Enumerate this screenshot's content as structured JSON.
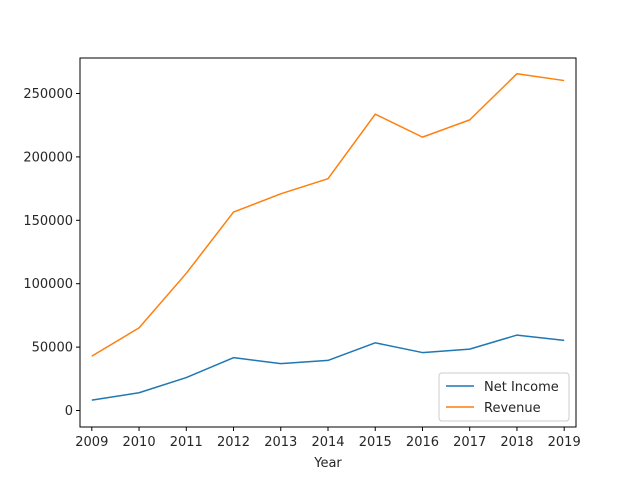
{
  "chart_data": {
    "type": "line",
    "title": "",
    "xlabel": "Year",
    "ylabel": "",
    "x": [
      2009,
      2010,
      2011,
      2012,
      2013,
      2014,
      2015,
      2016,
      2017,
      2018,
      2019
    ],
    "xlim": [
      2008.75,
      2019.25
    ],
    "ylim": [
      -13000,
      278000
    ],
    "yticks": [
      0,
      50000,
      100000,
      150000,
      200000,
      250000
    ],
    "ytick_labels": [
      "0",
      "50000",
      "100000",
      "150000",
      "200000",
      "250000"
    ],
    "xtick_labels": [
      "2009",
      "2010",
      "2011",
      "2012",
      "2013",
      "2014",
      "2015",
      "2016",
      "2017",
      "2018",
      "2019"
    ],
    "grid": false,
    "legend_position": "lower-right",
    "series": [
      {
        "name": "Net Income",
        "color": "#1f77b4",
        "values": [
          8200,
          14000,
          26000,
          41700,
          37000,
          39500,
          53400,
          45700,
          48400,
          59500,
          55300
        ]
      },
      {
        "name": "Revenue",
        "color": "#ff7f0e",
        "values": [
          42900,
          65200,
          108200,
          156500,
          170900,
          182800,
          233700,
          215600,
          229200,
          265600,
          260200
        ]
      }
    ]
  }
}
